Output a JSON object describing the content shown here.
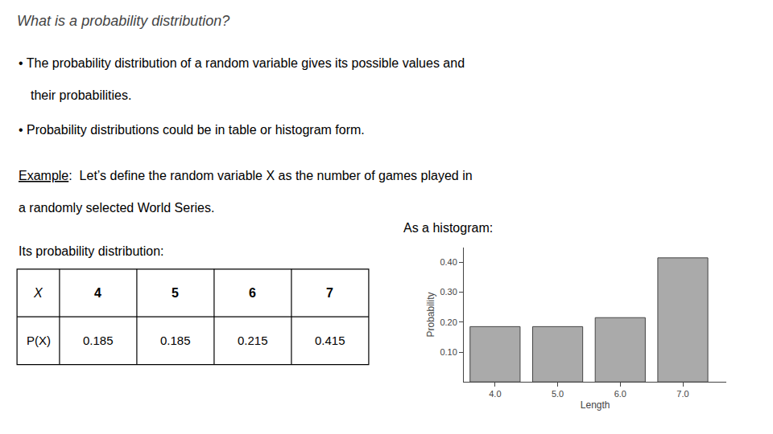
{
  "chart_data": {
    "type": "bar",
    "title": "What is a probability distribution?",
    "annotations": [
      "• The probability distribution of a random variable gives its possible values and",
      "their probabilities.",
      "• Probability distributions could be in table or histogram form.",
      "Example",
      ":  Let’s define the random variable X as the number of games played in",
      "a randomly selected World Series.",
      "As a histogram:",
      "Its probability distribution:",
      "X",
      "P(X)"
    ],
    "x": [
      4,
      5,
      6,
      7
    ],
    "values": [
      0.185,
      0.185,
      0.215,
      0.415
    ],
    "color": "#aaaaaa",
    "xlabel": "Length",
    "ylabel": "Probability",
    "xlim": [
      3.5,
      7.7
    ],
    "xticks": [
      {
        "value": 4,
        "label": "4.0"
      },
      {
        "value": 5,
        "label": "5.0"
      },
      {
        "value": 6,
        "label": "6.0"
      },
      {
        "value": 7,
        "label": "7.0"
      }
    ],
    "ylim": [
      0,
      0.45
    ],
    "yticks": [
      {
        "value": 0.1,
        "label": "0.10"
      },
      {
        "value": 0.2,
        "label": "0.20"
      },
      {
        "value": 0.3,
        "label": "0.30"
      },
      {
        "value": 0.4,
        "label": "0.40"
      }
    ],
    "grid": false
  }
}
